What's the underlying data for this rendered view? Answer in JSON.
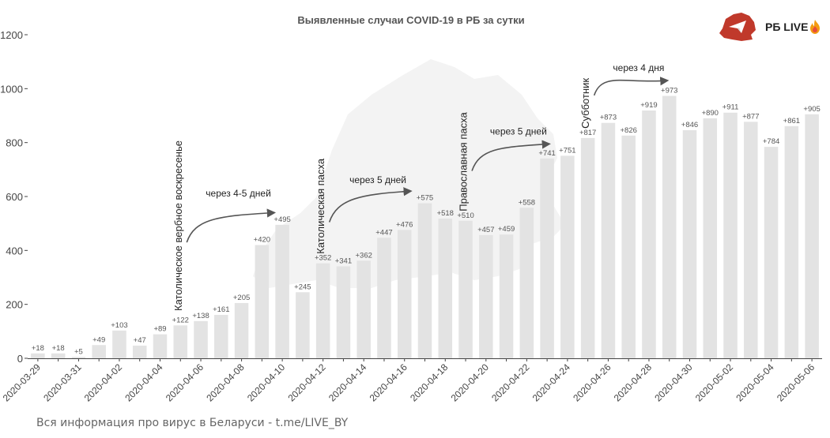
{
  "brand": {
    "name": "РБ LIVE"
  },
  "footer": {
    "text": "Вся информация про вирус в Беларуси - t.me/LIVE_BY"
  },
  "colors": {
    "bar": "#e3e3e3",
    "map": "#f3f3f3",
    "axis": "#444444",
    "arrow": "#555555",
    "logo": "#c0392b"
  },
  "chart_data": {
    "type": "bar",
    "title": "Выявленные случаи COVID-19 в РБ за сутки",
    "xlabel": "",
    "ylabel": "",
    "ylim": [
      0,
      1200
    ],
    "yticks": [
      0,
      200,
      400,
      600,
      800,
      1000,
      1200
    ],
    "grid": false,
    "categories": [
      "2020-03-29",
      "2020-03-30",
      "2020-03-31",
      "2020-04-01",
      "2020-04-02",
      "2020-04-03",
      "2020-04-04",
      "2020-04-05",
      "2020-04-06",
      "2020-04-07",
      "2020-04-08",
      "2020-04-09",
      "2020-04-10",
      "2020-04-11",
      "2020-04-12",
      "2020-04-13",
      "2020-04-14",
      "2020-04-15",
      "2020-04-16",
      "2020-04-17",
      "2020-04-18",
      "2020-04-19",
      "2020-04-20",
      "2020-04-21",
      "2020-04-22",
      "2020-04-23",
      "2020-04-24",
      "2020-04-25",
      "2020-04-26",
      "2020-04-27",
      "2020-04-28",
      "2020-04-29",
      "2020-04-30",
      "2020-05-01",
      "2020-05-02",
      "2020-05-03",
      "2020-05-04",
      "2020-05-05",
      "2020-05-06"
    ],
    "xtick_labels": [
      "2020-03-29",
      "2020-03-31",
      "2020-04-02",
      "2020-04-04",
      "2020-04-06",
      "2020-04-08",
      "2020-04-10",
      "2020-04-12",
      "2020-04-14",
      "2020-04-16",
      "2020-04-18",
      "2020-04-20",
      "2020-04-22",
      "2020-04-24",
      "2020-04-26",
      "2020-04-28",
      "2020-04-30",
      "2020-05-02",
      "2020-05-04",
      "2020-05-06"
    ],
    "values": [
      18,
      18,
      5,
      49,
      103,
      47,
      89,
      122,
      138,
      161,
      205,
      420,
      495,
      245,
      352,
      341,
      362,
      447,
      476,
      575,
      518,
      510,
      457,
      459,
      558,
      741,
      751,
      817,
      873,
      826,
      919,
      973,
      846,
      890,
      911,
      877,
      784,
      861,
      905
    ],
    "data_labels": [
      "+18",
      "+18",
      "+5",
      "+49",
      "+103",
      "+47",
      "+89",
      "+122",
      "+138",
      "+161",
      "+205",
      "+420",
      "+495",
      "+245",
      "+352",
      "+341",
      "+362",
      "+447",
      "+476",
      "+575",
      "+518",
      "+510",
      "+457",
      "+459",
      "+558",
      "+741",
      "+751",
      "+817",
      "+873",
      "+826",
      "+919",
      "+973",
      "+846",
      "+890",
      "+911",
      "+877",
      "+784",
      "+861",
      "+905"
    ],
    "annotations": [
      {
        "label": "Католическое вербное воскресенье",
        "note": "через 4-5 дней",
        "at": "2020-04-05",
        "note_y": 600,
        "from_y": 430,
        "to_index": 11.6,
        "to_y": 540
      },
      {
        "label": "Католическая пасха",
        "note": "через 5 дней",
        "at": "2020-04-12",
        "note_y": 650,
        "from_y": 505,
        "to_index": 18.3,
        "to_y": 620
      },
      {
        "label": "Православная пасха",
        "note": "через 5 дней",
        "at": "2020-04-19",
        "note_y": 830,
        "from_y": 695,
        "to_index": 25.1,
        "to_y": 795
      },
      {
        "label": "Субботник",
        "note": "через 4 дня",
        "at": "2020-04-25",
        "note_y": 1065,
        "from_y": 975,
        "to_index": 30.9,
        "to_y": 1030
      }
    ]
  }
}
